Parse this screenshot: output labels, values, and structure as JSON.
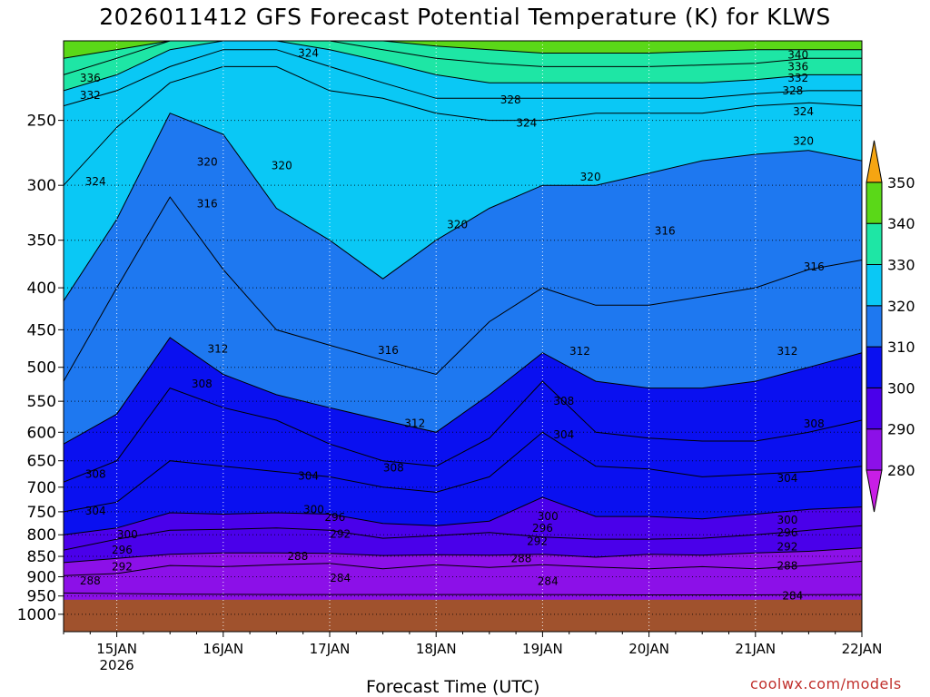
{
  "chart_data": {
    "type": "heatmap",
    "title": "2026011412 GFS Forecast Potential Temperature (K) for KLWS",
    "xlabel": "Forecast Time (UTC)",
    "ylabel": "",
    "credit": "coolwx.com/models",
    "x_range_days": [
      14.5,
      22.0
    ],
    "y_range_hpa": [
      1050,
      200
    ],
    "y_ticks": [
      250,
      300,
      350,
      400,
      450,
      500,
      550,
      600,
      650,
      700,
      750,
      800,
      850,
      900,
      950,
      1000
    ],
    "x_ticks": [
      {
        "day": 15,
        "label": "15JAN",
        "sub": "2026"
      },
      {
        "day": 16,
        "label": "16JAN"
      },
      {
        "day": 17,
        "label": "17JAN"
      },
      {
        "day": 18,
        "label": "18JAN"
      },
      {
        "day": 19,
        "label": "19JAN"
      },
      {
        "day": 20,
        "label": "20JAN"
      },
      {
        "day": 21,
        "label": "21JAN"
      },
      {
        "day": 22,
        "label": "22JAN"
      }
    ],
    "ground_level_hpa": 960,
    "contour_interval_k": 2,
    "colorbar": {
      "levels": [
        280,
        290,
        300,
        310,
        320,
        330,
        340,
        350
      ],
      "colors": [
        "#c81ee6",
        "#8c10e8",
        "#4a00ea",
        "#0a10f0",
        "#1e78f0",
        "#0ac8f5",
        "#1ee6a5",
        "#5ad818",
        "#f5f50a",
        "#f5a512"
      ]
    },
    "series": [
      {
        "name": "284 K",
        "values": [
          942,
          945,
          946,
          946,
          946,
          947,
          947,
          946
        ]
      },
      {
        "name": "288 K",
        "values": [
          897,
          892,
          872,
          875,
          870,
          867,
          880,
          870,
          877,
          870,
          876,
          880,
          875,
          880,
          872,
          862
        ]
      },
      {
        "name": "292 K",
        "values": [
          865,
          855,
          845,
          842,
          842,
          843,
          848,
          846,
          847,
          845,
          852,
          845,
          847,
          842,
          838,
          830
        ]
      },
      {
        "name": "296 K",
        "values": [
          835,
          810,
          790,
          788,
          785,
          790,
          808,
          802,
          795,
          805,
          810,
          810,
          808,
          800,
          790,
          780
        ]
      },
      {
        "name": "300 K",
        "values": [
          800,
          785,
          752,
          755,
          752,
          755,
          775,
          780,
          770,
          720,
          760,
          760,
          765,
          755,
          745,
          740
        ]
      },
      {
        "name": "304 K",
        "values": [
          750,
          730,
          650,
          660,
          670,
          680,
          700,
          710,
          680,
          600,
          660,
          665,
          680,
          675,
          670,
          660
        ]
      },
      {
        "name": "308 K",
        "values": [
          690,
          650,
          530,
          560,
          580,
          620,
          650,
          660,
          610,
          520,
          600,
          610,
          615,
          615,
          600,
          580
        ]
      },
      {
        "name": "312 K",
        "values": [
          620,
          570,
          460,
          510,
          540,
          560,
          580,
          600,
          540,
          480,
          520,
          530,
          530,
          520,
          500,
          480
        ]
      },
      {
        "name": "316 K",
        "values": [
          520,
          400,
          310,
          380,
          450,
          470,
          490,
          510,
          440,
          400,
          420,
          420,
          410,
          400,
          380,
          370
        ]
      },
      {
        "name": "320 K",
        "values": [
          415,
          330,
          245,
          260,
          320,
          350,
          390,
          350,
          320,
          300,
          300,
          290,
          280,
          275,
          272,
          280
        ]
      },
      {
        "name": "324 K",
        "values": [
          300,
          255,
          225,
          215,
          215,
          230,
          235,
          245,
          250,
          250,
          245,
          245,
          245,
          240,
          238,
          240
        ]
      },
      {
        "name": "328 K",
        "values": [
          240,
          230,
          215,
          205,
          205,
          215,
          225,
          235,
          235,
          235,
          235,
          235,
          235,
          232,
          230,
          230
        ]
      },
      {
        "name": "332 K",
        "values": [
          230,
          220,
          205,
          200,
          200,
          205,
          212,
          220,
          225,
          225,
          225,
          225,
          225,
          223,
          220,
          220
        ]
      },
      {
        "name": "336 K",
        "values": [
          220,
          210,
          200,
          200,
          200,
          200,
          205,
          210,
          213,
          215,
          215,
          215,
          214,
          213,
          210,
          210
        ]
      },
      {
        "name": "340 K",
        "values": [
          210,
          205,
          200,
          200,
          200,
          200,
          200,
          203,
          205,
          207,
          207,
          207,
          206,
          205,
          205,
          205
        ]
      }
    ],
    "contour_labels": [
      {
        "text": "324",
        "day": 16.8,
        "hpa": 207
      },
      {
        "text": "340",
        "day": 21.4,
        "hpa": 208
      },
      {
        "text": "336",
        "day": 14.75,
        "hpa": 222
      },
      {
        "text": "336",
        "day": 21.4,
        "hpa": 215
      },
      {
        "text": "332",
        "day": 14.75,
        "hpa": 233
      },
      {
        "text": "332",
        "day": 21.4,
        "hpa": 222
      },
      {
        "text": "328",
        "day": 18.7,
        "hpa": 236
      },
      {
        "text": "328",
        "day": 21.35,
        "hpa": 230
      },
      {
        "text": "324",
        "day": 18.85,
        "hpa": 252
      },
      {
        "text": "324",
        "day": 21.45,
        "hpa": 244
      },
      {
        "text": "320",
        "day": 15.85,
        "hpa": 281
      },
      {
        "text": "320",
        "day": 16.55,
        "hpa": 284
      },
      {
        "text": "320",
        "day": 19.45,
        "hpa": 293
      },
      {
        "text": "320",
        "day": 21.45,
        "hpa": 265
      },
      {
        "text": "324",
        "day": 14.8,
        "hpa": 297
      },
      {
        "text": "316",
        "day": 15.85,
        "hpa": 316
      },
      {
        "text": "320",
        "day": 18.2,
        "hpa": 335
      },
      {
        "text": "316",
        "day": 20.15,
        "hpa": 341
      },
      {
        "text": "316",
        "day": 21.55,
        "hpa": 377
      },
      {
        "text": "312",
        "day": 15.95,
        "hpa": 475
      },
      {
        "text": "316",
        "day": 17.55,
        "hpa": 477
      },
      {
        "text": "312",
        "day": 19.35,
        "hpa": 478
      },
      {
        "text": "312",
        "day": 21.3,
        "hpa": 478
      },
      {
        "text": "308",
        "day": 15.8,
        "hpa": 524
      },
      {
        "text": "308",
        "day": 19.2,
        "hpa": 550
      },
      {
        "text": "312",
        "day": 17.8,
        "hpa": 585
      },
      {
        "text": "304",
        "day": 19.2,
        "hpa": 604
      },
      {
        "text": "308",
        "day": 21.55,
        "hpa": 586
      },
      {
        "text": "308",
        "day": 14.8,
        "hpa": 675
      },
      {
        "text": "308",
        "day": 17.6,
        "hpa": 663
      },
      {
        "text": "304",
        "day": 16.8,
        "hpa": 678
      },
      {
        "text": "304",
        "day": 21.3,
        "hpa": 683
      },
      {
        "text": "304",
        "day": 14.8,
        "hpa": 748
      },
      {
        "text": "300",
        "day": 16.85,
        "hpa": 745
      },
      {
        "text": "300",
        "day": 19.05,
        "hpa": 760
      },
      {
        "text": "300",
        "day": 21.3,
        "hpa": 768
      },
      {
        "text": "296",
        "day": 17.05,
        "hpa": 762
      },
      {
        "text": "296",
        "day": 19.0,
        "hpa": 785
      },
      {
        "text": "296",
        "day": 21.3,
        "hpa": 795
      },
      {
        "text": "300",
        "day": 15.1,
        "hpa": 800
      },
      {
        "text": "292",
        "day": 17.1,
        "hpa": 798
      },
      {
        "text": "292",
        "day": 18.95,
        "hpa": 815
      },
      {
        "text": "292",
        "day": 21.3,
        "hpa": 828
      },
      {
        "text": "296",
        "day": 15.05,
        "hpa": 835
      },
      {
        "text": "288",
        "day": 16.7,
        "hpa": 850
      },
      {
        "text": "288",
        "day": 18.8,
        "hpa": 855
      },
      {
        "text": "288",
        "day": 21.3,
        "hpa": 873
      },
      {
        "text": "292",
        "day": 15.05,
        "hpa": 875
      },
      {
        "text": "284",
        "day": 17.1,
        "hpa": 903
      },
      {
        "text": "284",
        "day": 19.05,
        "hpa": 912
      },
      {
        "text": "288",
        "day": 14.75,
        "hpa": 910
      },
      {
        "text": "284",
        "day": 21.35,
        "hpa": 950
      }
    ]
  }
}
